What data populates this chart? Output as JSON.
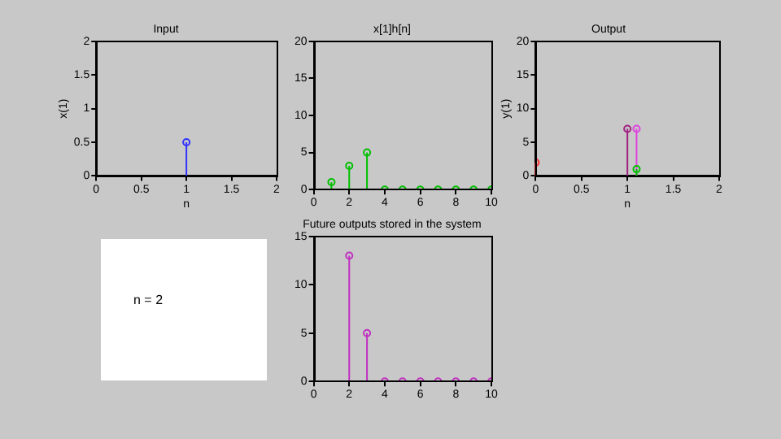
{
  "chart_data": [
    {
      "type": "lollipop",
      "title": "Input",
      "xlabel": "n",
      "ylabel": "x(1)",
      "xlim": [
        0,
        2
      ],
      "xticks": [
        0,
        0.5,
        1,
        1.5,
        2
      ],
      "ylim": [
        0,
        2
      ],
      "yticks": [
        0,
        0.5,
        1,
        1.5,
        2
      ],
      "marker": "circle",
      "legend": false,
      "grid": false,
      "series": [
        {
          "color": "#3030ff",
          "x": [
            1
          ],
          "values": [
            0.5
          ]
        }
      ]
    },
    {
      "type": "lollipop",
      "title": "x[1]h[n]",
      "xlim": [
        0,
        10
      ],
      "xticks": [
        0,
        2,
        4,
        6,
        8,
        10
      ],
      "ylim": [
        0,
        20
      ],
      "yticks": [
        0,
        5,
        10,
        15,
        20
      ],
      "marker": "circle",
      "legend": false,
      "grid": false,
      "series": [
        {
          "color": "#00c000",
          "x": [
            1,
            2,
            3,
            4,
            5,
            6,
            7,
            8,
            9,
            10
          ],
          "values": [
            1,
            3.2,
            5,
            0,
            0,
            0,
            0,
            0,
            0,
            0
          ]
        }
      ]
    },
    {
      "type": "lollipop",
      "title": "Output",
      "xlabel": "n",
      "ylabel": "y(1)",
      "xlim": [
        0,
        2
      ],
      "xticks": [
        0,
        0.5,
        1,
        1.5,
        2
      ],
      "ylim": [
        0,
        20
      ],
      "yticks": [
        0,
        5,
        10,
        15,
        20
      ],
      "marker": "circle",
      "legend": false,
      "grid": false,
      "series": [
        {
          "color": "#ff3030",
          "x": [
            0
          ],
          "values": [
            2
          ]
        },
        {
          "color": "#a02080",
          "x": [
            1
          ],
          "values": [
            7
          ]
        },
        {
          "color": "#e040e0",
          "x": [
            1.1
          ],
          "values": [
            7
          ]
        },
        {
          "color": "#00c000",
          "x": [
            1.1
          ],
          "values": [
            1
          ]
        }
      ]
    },
    {
      "type": "other",
      "annotations": [
        "n = 2"
      ]
    },
    {
      "type": "lollipop",
      "title": "Future outputs stored in the system",
      "xlim": [
        0,
        10
      ],
      "xticks": [
        0,
        2,
        4,
        6,
        8,
        10
      ],
      "ylim": [
        0,
        15
      ],
      "yticks": [
        0,
        5,
        10,
        15
      ],
      "marker": "circle",
      "legend": false,
      "grid": false,
      "series": [
        {
          "color": "#c030c0",
          "x": [
            2,
            3,
            4,
            5,
            6,
            7,
            8,
            9,
            10
          ],
          "values": [
            13,
            5,
            0,
            0,
            0,
            0,
            0,
            0,
            0
          ]
        }
      ]
    }
  ]
}
